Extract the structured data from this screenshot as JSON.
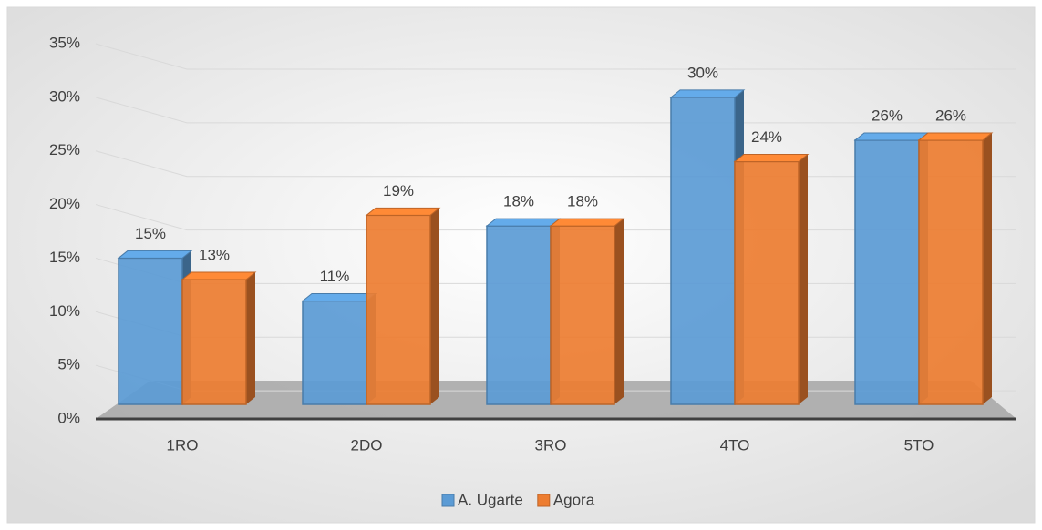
{
  "chart_data": {
    "type": "bar",
    "categories": [
      "1RO",
      "2DO",
      "3RO",
      "4TO",
      "5TO"
    ],
    "series": [
      {
        "name": "A. Ugarte",
        "color": "#5b9bd5",
        "values": [
          15,
          11,
          18,
          30,
          26
        ],
        "value_labels": [
          "15%",
          "11%",
          "18%",
          "30%",
          "26%"
        ]
      },
      {
        "name": "Agora",
        "color": "#ed7d31",
        "values": [
          13,
          19,
          18,
          24,
          26
        ],
        "value_labels": [
          "13%",
          "19%",
          "18%",
          "24%",
          "26%"
        ]
      }
    ],
    "ylim": [
      0,
      35
    ],
    "yticks": [
      {
        "value": 0,
        "label": "0%"
      },
      {
        "value": 5,
        "label": "5%"
      },
      {
        "value": 10,
        "label": "10%"
      },
      {
        "value": 15,
        "label": "15%"
      },
      {
        "value": 20,
        "label": "20%"
      },
      {
        "value": 25,
        "label": "25%"
      },
      {
        "value": 30,
        "label": "30%"
      },
      {
        "value": 35,
        "label": "35%"
      }
    ],
    "grid": true,
    "legend": "bottom"
  }
}
